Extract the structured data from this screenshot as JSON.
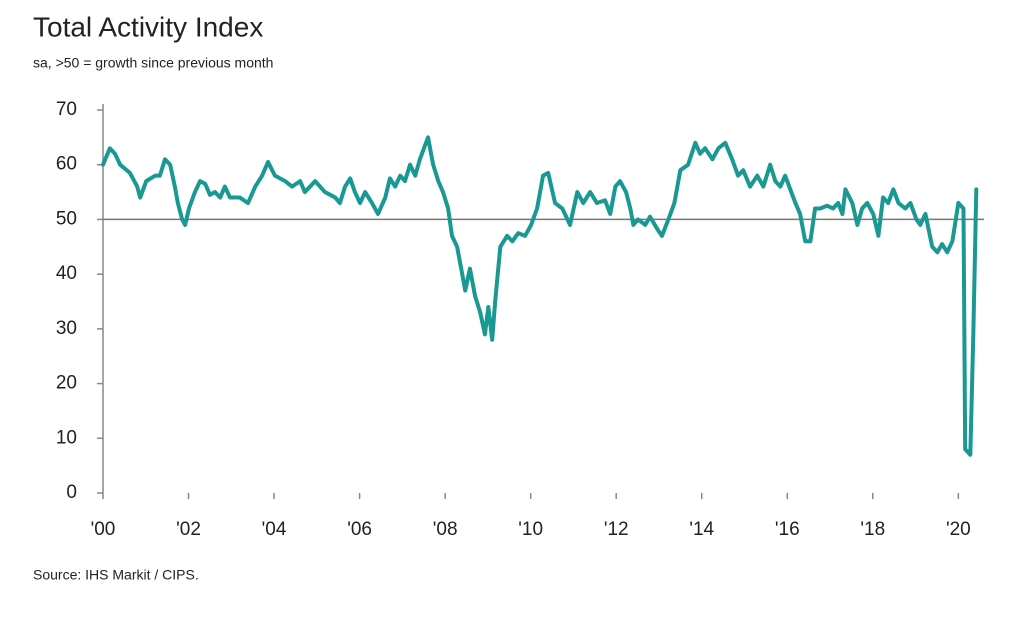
{
  "chart_data": {
    "type": "line",
    "title": "Total Activity Index",
    "subtitle": "sa, >50 = growth since previous month",
    "source": "Source: IHS Markit / CIPS.",
    "x": [
      2000,
      2000.16,
      2000.28,
      2000.4,
      2000.63,
      2000.8,
      2000.87,
      2001.01,
      2001.22,
      2001.33,
      2001.45,
      2001.57,
      2001.68,
      2001.75,
      2001.85,
      2001.92,
      2002.01,
      2002.15,
      2002.27,
      2002.39,
      2002.5,
      2002.62,
      2002.74,
      2002.85,
      2002.97,
      2003.2,
      2003.39,
      2003.56,
      2003.72,
      2003.86,
      2004.02,
      2004.26,
      2004.42,
      2004.61,
      2004.72,
      2004.96,
      2005.19,
      2005.43,
      2005.54,
      2005.66,
      2005.78,
      2005.89,
      2006.01,
      2006.13,
      2006.29,
      2006.43,
      2006.6,
      2006.71,
      2006.83,
      2006.95,
      2007.06,
      2007.18,
      2007.3,
      2007.41,
      2007.6,
      2007.72,
      2007.84,
      2007.95,
      2008.07,
      2008.16,
      2008.28,
      2008.4,
      2008.47,
      2008.58,
      2008.7,
      2008.82,
      2008.93,
      2009.01,
      2009.1,
      2009.17,
      2009.29,
      2009.45,
      2009.57,
      2009.71,
      2009.87,
      2010.01,
      2010.15,
      2010.29,
      2010.41,
      2010.57,
      2010.74,
      2010.92,
      2011.09,
      2011.23,
      2011.39,
      2011.55,
      2011.74,
      2011.86,
      2011.98,
      2012.09,
      2012.23,
      2012.33,
      2012.4,
      2012.51,
      2012.68,
      2012.79,
      2012.98,
      2013.07,
      2013.22,
      2013.36,
      2013.5,
      2013.68,
      2013.85,
      2013.96,
      2014.08,
      2014.25,
      2014.39,
      2014.55,
      2014.71,
      2014.85,
      2014.97,
      2015.13,
      2015.3,
      2015.44,
      2015.6,
      2015.72,
      2015.84,
      2015.95,
      2016.19,
      2016.3,
      2016.42,
      2016.54,
      2016.65,
      2016.77,
      2016.93,
      2017.07,
      2017.19,
      2017.29,
      2017.36,
      2017.52,
      2017.64,
      2017.75,
      2017.87,
      2018.01,
      2018.13,
      2018.24,
      2018.36,
      2018.48,
      2018.6,
      2018.76,
      2018.88,
      2019.02,
      2019.11,
      2019.23,
      2019.39,
      2019.51,
      2019.62,
      2019.74,
      2019.86,
      2020.0,
      2020.12,
      2020.16,
      2020.28,
      2020.35,
      2020.42
    ],
    "series": [
      {
        "color": "#1a9893",
        "values": [
          60,
          63,
          62,
          60,
          58.5,
          56,
          54,
          57,
          58,
          58,
          61,
          60,
          56,
          53,
          50,
          49,
          52,
          55,
          57,
          56.5,
          54.5,
          55,
          54,
          56,
          54,
          54,
          53,
          56,
          58,
          60.5,
          58,
          57,
          56,
          57,
          55,
          57,
          55,
          54,
          53,
          56,
          57.5,
          55,
          53,
          55,
          53,
          51,
          54,
          57.5,
          56,
          58,
          57,
          60,
          58,
          61,
          65,
          60,
          57,
          55,
          52,
          47,
          45,
          40,
          37,
          41,
          36,
          33,
          29,
          34,
          28,
          35,
          45,
          47,
          46,
          47.5,
          47,
          49,
          52,
          58,
          58.5,
          53,
          52,
          49,
          55,
          53,
          55,
          53,
          53.5,
          51,
          56,
          57,
          55,
          52,
          49,
          50,
          49,
          50.5,
          48,
          47,
          50,
          53,
          59,
          60,
          64,
          62,
          63,
          61,
          63,
          64,
          61,
          58,
          59,
          56,
          58,
          56,
          60,
          57,
          56,
          58,
          53,
          51,
          46,
          46,
          52,
          52,
          52.5,
          52,
          53,
          51,
          55.5,
          53,
          49,
          52,
          53,
          51,
          47,
          54,
          53,
          55.5,
          53,
          52,
          53,
          50,
          49,
          51,
          45,
          44,
          45.5,
          44,
          46,
          53,
          52,
          8,
          7,
          29,
          55.5
        ]
      }
    ],
    "reference_line": 50,
    "xlim": [
      2000,
      2020.6
    ],
    "xticks": [
      {
        "value": 2000,
        "label": "'00"
      },
      {
        "value": 2002,
        "label": "'02"
      },
      {
        "value": 2004,
        "label": "'04"
      },
      {
        "value": 2006,
        "label": "'06"
      },
      {
        "value": 2008,
        "label": "'08"
      },
      {
        "value": 2010,
        "label": "'10"
      },
      {
        "value": 2012,
        "label": "'12"
      },
      {
        "value": 2014,
        "label": "'14"
      },
      {
        "value": 2016,
        "label": "'16"
      },
      {
        "value": 2018,
        "label": "'18"
      },
      {
        "value": 2020,
        "label": "'20"
      }
    ],
    "ylim": [
      0,
      70
    ],
    "yticks": [
      0,
      10,
      20,
      30,
      40,
      50,
      60,
      70
    ]
  }
}
